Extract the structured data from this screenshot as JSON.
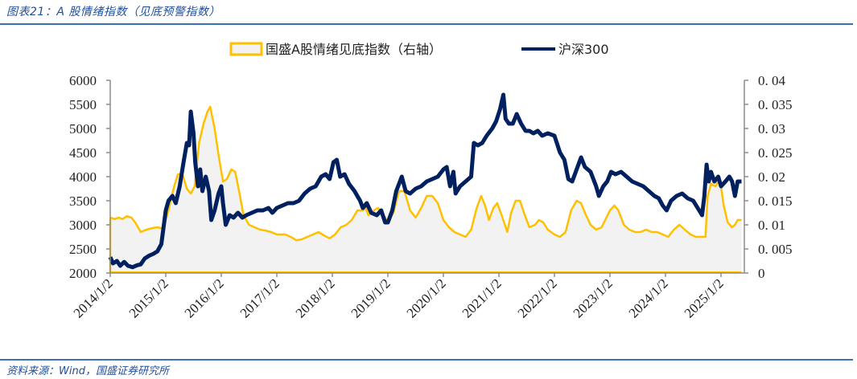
{
  "header": {
    "title": "图表21：A 股情绪指数（见底预警指数）"
  },
  "footer": {
    "source": "资料来源：Wind，国盛证券研究所"
  },
  "colors": {
    "rule": "#3b6fb6",
    "title": "#1f4e9c",
    "sentiment_line": "#ffc000",
    "sentiment_fill": "#f2f2f2",
    "hs300_line": "#002060",
    "axis": "#8c8c8c"
  },
  "legend": {
    "sentiment_label": "国盛A股情绪见底指数（右轴）",
    "hs300_label": "沪深300"
  },
  "chart_data": {
    "type": "line",
    "title": "A 股情绪指数（见底预警指数）",
    "xlabel": "",
    "ylabel_left": "",
    "ylabel_right": "",
    "x_tick_labels": [
      "2014/1/2",
      "2015/1/2",
      "2016/1/2",
      "2017/1/2",
      "2018/1/2",
      "2019/1/2",
      "2020/1/2",
      "2021/1/2",
      "2022/1/2",
      "2023/1/2",
      "2024/1/2",
      "2025/1/2"
    ],
    "y_left": {
      "min": 2000,
      "max": 6000,
      "step": 500,
      "ticks": [
        "6000",
        "5500",
        "5000",
        "4500",
        "4000",
        "3500",
        "3000",
        "2500",
        "2000"
      ]
    },
    "y_right": {
      "min": 0,
      "max": 0.04,
      "step": 0.005,
      "ticks": [
        "0. 04",
        "0. 035",
        "0. 03",
        "0. 025",
        "0. 02",
        "0. 015",
        "0. 01",
        "0. 005",
        "0"
      ]
    },
    "legend_position": "top",
    "grid": false,
    "series": [
      {
        "name": "国盛A股情绪见底指数（右轴）",
        "axis": "right",
        "style": "area",
        "points": [
          [
            2014.0,
            0.0115
          ],
          [
            2014.08,
            0.0112
          ],
          [
            2014.15,
            0.0115
          ],
          [
            2014.22,
            0.0112
          ],
          [
            2014.3,
            0.0118
          ],
          [
            2014.38,
            0.0115
          ],
          [
            2014.45,
            0.0105
          ],
          [
            2014.55,
            0.0085
          ],
          [
            2014.65,
            0.009
          ],
          [
            2014.75,
            0.0093
          ],
          [
            2014.85,
            0.0095
          ],
          [
            2014.95,
            0.0092
          ],
          [
            2015.05,
            0.013
          ],
          [
            2015.15,
            0.018
          ],
          [
            2015.22,
            0.0205
          ],
          [
            2015.3,
            0.0205
          ],
          [
            2015.38,
            0.0175
          ],
          [
            2015.45,
            0.0165
          ],
          [
            2015.52,
            0.018
          ],
          [
            2015.6,
            0.027
          ],
          [
            2015.68,
            0.031
          ],
          [
            2015.75,
            0.0335
          ],
          [
            2015.8,
            0.0345
          ],
          [
            2015.88,
            0.03
          ],
          [
            2015.95,
            0.0245
          ],
          [
            2016.03,
            0.019
          ],
          [
            2016.1,
            0.0195
          ],
          [
            2016.18,
            0.0215
          ],
          [
            2016.25,
            0.021
          ],
          [
            2016.32,
            0.017
          ],
          [
            2016.4,
            0.012
          ],
          [
            2016.5,
            0.01
          ],
          [
            2016.6,
            0.0095
          ],
          [
            2016.7,
            0.009
          ],
          [
            2016.8,
            0.0088
          ],
          [
            2016.9,
            0.0085
          ],
          [
            2017.0,
            0.008
          ],
          [
            2017.15,
            0.008
          ],
          [
            2017.25,
            0.0075
          ],
          [
            2017.35,
            0.0068
          ],
          [
            2017.45,
            0.007
          ],
          [
            2017.55,
            0.0075
          ],
          [
            2017.65,
            0.008
          ],
          [
            2017.75,
            0.0085
          ],
          [
            2017.85,
            0.0078
          ],
          [
            2017.95,
            0.0072
          ],
          [
            2018.05,
            0.008
          ],
          [
            2018.15,
            0.0095
          ],
          [
            2018.25,
            0.01
          ],
          [
            2018.35,
            0.011
          ],
          [
            2018.45,
            0.013
          ],
          [
            2018.55,
            0.013
          ],
          [
            2018.6,
            0.0135
          ],
          [
            2018.65,
            0.012
          ],
          [
            2018.75,
            0.013
          ],
          [
            2018.82,
            0.0135
          ],
          [
            2018.9,
            0.0125
          ],
          [
            2019.0,
            0.0105
          ],
          [
            2019.1,
            0.0125
          ],
          [
            2019.2,
            0.017
          ],
          [
            2019.3,
            0.017
          ],
          [
            2019.4,
            0.013
          ],
          [
            2019.5,
            0.0115
          ],
          [
            2019.6,
            0.0135
          ],
          [
            2019.7,
            0.016
          ],
          [
            2019.8,
            0.016
          ],
          [
            2019.9,
            0.0145
          ],
          [
            2020.0,
            0.011
          ],
          [
            2020.1,
            0.0095
          ],
          [
            2020.2,
            0.0085
          ],
          [
            2020.3,
            0.008
          ],
          [
            2020.4,
            0.0075
          ],
          [
            2020.5,
            0.009
          ],
          [
            2020.6,
            0.0135
          ],
          [
            2020.68,
            0.016
          ],
          [
            2020.75,
            0.014
          ],
          [
            2020.82,
            0.011
          ],
          [
            2020.9,
            0.0135
          ],
          [
            2020.97,
            0.0145
          ],
          [
            2021.05,
            0.012
          ],
          [
            2021.15,
            0.0085
          ],
          [
            2021.22,
            0.0125
          ],
          [
            2021.3,
            0.015
          ],
          [
            2021.38,
            0.015
          ],
          [
            2021.45,
            0.0125
          ],
          [
            2021.55,
            0.0095
          ],
          [
            2021.65,
            0.01
          ],
          [
            2021.72,
            0.011
          ],
          [
            2021.8,
            0.0105
          ],
          [
            2021.88,
            0.009
          ],
          [
            2022.0,
            0.008
          ],
          [
            2022.1,
            0.0075
          ],
          [
            2022.2,
            0.0085
          ],
          [
            2022.3,
            0.013
          ],
          [
            2022.4,
            0.015
          ],
          [
            2022.48,
            0.0145
          ],
          [
            2022.55,
            0.0125
          ],
          [
            2022.65,
            0.01
          ],
          [
            2022.75,
            0.009
          ],
          [
            2022.85,
            0.0095
          ],
          [
            2023.0,
            0.013
          ],
          [
            2023.08,
            0.014
          ],
          [
            2023.15,
            0.013
          ],
          [
            2023.25,
            0.01
          ],
          [
            2023.35,
            0.009
          ],
          [
            2023.45,
            0.0085
          ],
          [
            2023.55,
            0.0085
          ],
          [
            2023.65,
            0.009
          ],
          [
            2023.75,
            0.0085
          ],
          [
            2023.85,
            0.0085
          ],
          [
            2023.95,
            0.008
          ],
          [
            2024.05,
            0.0075
          ],
          [
            2024.15,
            0.009
          ],
          [
            2024.25,
            0.01
          ],
          [
            2024.35,
            0.009
          ],
          [
            2024.45,
            0.008
          ],
          [
            2024.55,
            0.0075
          ],
          [
            2024.65,
            0.0075
          ],
          [
            2024.72,
            0.0075
          ],
          [
            2024.76,
            0.016
          ],
          [
            2024.82,
            0.0185
          ],
          [
            2024.9,
            0.018
          ],
          [
            2024.98,
            0.0195
          ],
          [
            2025.05,
            0.014
          ],
          [
            2025.12,
            0.0105
          ],
          [
            2025.2,
            0.0095
          ],
          [
            2025.25,
            0.01
          ],
          [
            2025.3,
            0.011
          ],
          [
            2025.37,
            0.011
          ]
        ]
      },
      {
        "name": "沪深300",
        "axis": "left",
        "style": "line",
        "points": [
          [
            2014.0,
            2330
          ],
          [
            2014.05,
            2200
          ],
          [
            2014.12,
            2250
          ],
          [
            2014.18,
            2150
          ],
          [
            2014.25,
            2230
          ],
          [
            2014.32,
            2150
          ],
          [
            2014.4,
            2120
          ],
          [
            2014.48,
            2160
          ],
          [
            2014.55,
            2180
          ],
          [
            2014.62,
            2300
          ],
          [
            2014.7,
            2360
          ],
          [
            2014.78,
            2400
          ],
          [
            2014.85,
            2450
          ],
          [
            2014.92,
            2600
          ],
          [
            2015.0,
            3300
          ],
          [
            2015.05,
            3500
          ],
          [
            2015.12,
            3600
          ],
          [
            2015.18,
            3450
          ],
          [
            2015.25,
            3800
          ],
          [
            2015.32,
            4300
          ],
          [
            2015.38,
            4700
          ],
          [
            2015.42,
            4650
          ],
          [
            2015.45,
            5350
          ],
          [
            2015.5,
            4900
          ],
          [
            2015.53,
            4300
          ],
          [
            2015.58,
            3800
          ],
          [
            2015.62,
            4150
          ],
          [
            2015.66,
            3700
          ],
          [
            2015.72,
            4000
          ],
          [
            2015.78,
            3700
          ],
          [
            2015.82,
            3100
          ],
          [
            2015.88,
            3300
          ],
          [
            2015.95,
            3650
          ],
          [
            2016.0,
            3800
          ],
          [
            2016.03,
            3450
          ],
          [
            2016.08,
            3000
          ],
          [
            2016.15,
            3200
          ],
          [
            2016.22,
            3150
          ],
          [
            2016.3,
            3250
          ],
          [
            2016.38,
            3150
          ],
          [
            2016.45,
            3200
          ],
          [
            2016.55,
            3250
          ],
          [
            2016.65,
            3300
          ],
          [
            2016.75,
            3300
          ],
          [
            2016.85,
            3350
          ],
          [
            2016.92,
            3250
          ],
          [
            2017.0,
            3350
          ],
          [
            2017.1,
            3400
          ],
          [
            2017.2,
            3450
          ],
          [
            2017.3,
            3450
          ],
          [
            2017.4,
            3500
          ],
          [
            2017.5,
            3650
          ],
          [
            2017.6,
            3750
          ],
          [
            2017.7,
            3800
          ],
          [
            2017.8,
            4000
          ],
          [
            2017.88,
            4050
          ],
          [
            2017.95,
            3950
          ],
          [
            2018.02,
            4300
          ],
          [
            2018.08,
            4350
          ],
          [
            2018.14,
            4000
          ],
          [
            2018.22,
            4050
          ],
          [
            2018.3,
            3850
          ],
          [
            2018.4,
            3700
          ],
          [
            2018.5,
            3500
          ],
          [
            2018.55,
            3350
          ],
          [
            2018.62,
            3450
          ],
          [
            2018.7,
            3250
          ],
          [
            2018.8,
            3200
          ],
          [
            2018.88,
            3300
          ],
          [
            2018.95,
            3050
          ],
          [
            2019.0,
            3050
          ],
          [
            2019.08,
            3300
          ],
          [
            2019.15,
            3700
          ],
          [
            2019.25,
            4000
          ],
          [
            2019.32,
            3700
          ],
          [
            2019.4,
            3650
          ],
          [
            2019.5,
            3750
          ],
          [
            2019.6,
            3800
          ],
          [
            2019.7,
            3900
          ],
          [
            2019.8,
            3950
          ],
          [
            2019.9,
            4000
          ],
          [
            2020.0,
            4150
          ],
          [
            2020.06,
            4200
          ],
          [
            2020.12,
            3800
          ],
          [
            2020.18,
            4100
          ],
          [
            2020.22,
            3650
          ],
          [
            2020.3,
            3800
          ],
          [
            2020.4,
            3900
          ],
          [
            2020.5,
            4000
          ],
          [
            2020.55,
            4700
          ],
          [
            2020.62,
            4650
          ],
          [
            2020.7,
            4700
          ],
          [
            2020.78,
            4850
          ],
          [
            2020.88,
            5000
          ],
          [
            2020.95,
            5150
          ],
          [
            2021.02,
            5400
          ],
          [
            2021.08,
            5700
          ],
          [
            2021.12,
            5200
          ],
          [
            2021.18,
            5100
          ],
          [
            2021.25,
            5100
          ],
          [
            2021.32,
            5300
          ],
          [
            2021.4,
            5100
          ],
          [
            2021.48,
            4950
          ],
          [
            2021.55,
            4950
          ],
          [
            2021.62,
            4900
          ],
          [
            2021.7,
            4950
          ],
          [
            2021.78,
            4850
          ],
          [
            2021.88,
            4900
          ],
          [
            2022.0,
            4850
          ],
          [
            2022.1,
            4500
          ],
          [
            2022.18,
            4350
          ],
          [
            2022.25,
            3950
          ],
          [
            2022.32,
            3900
          ],
          [
            2022.4,
            4150
          ],
          [
            2022.48,
            4400
          ],
          [
            2022.55,
            4200
          ],
          [
            2022.65,
            4100
          ],
          [
            2022.75,
            3800
          ],
          [
            2022.8,
            3600
          ],
          [
            2022.88,
            3800
          ],
          [
            2022.95,
            3900
          ],
          [
            2023.02,
            4100
          ],
          [
            2023.1,
            4050
          ],
          [
            2023.2,
            4100
          ],
          [
            2023.3,
            4000
          ],
          [
            2023.4,
            3900
          ],
          [
            2023.5,
            3850
          ],
          [
            2023.6,
            3800
          ],
          [
            2023.7,
            3700
          ],
          [
            2023.8,
            3600
          ],
          [
            2023.88,
            3550
          ],
          [
            2023.95,
            3400
          ],
          [
            2024.02,
            3300
          ],
          [
            2024.1,
            3500
          ],
          [
            2024.2,
            3600
          ],
          [
            2024.3,
            3650
          ],
          [
            2024.4,
            3550
          ],
          [
            2024.5,
            3500
          ],
          [
            2024.58,
            3350
          ],
          [
            2024.66,
            3200
          ],
          [
            2024.7,
            3600
          ],
          [
            2024.74,
            4250
          ],
          [
            2024.78,
            3900
          ],
          [
            2024.82,
            4100
          ],
          [
            2024.88,
            3900
          ],
          [
            2024.95,
            4000
          ],
          [
            2025.0,
            3800
          ],
          [
            2025.08,
            3900
          ],
          [
            2025.15,
            4000
          ],
          [
            2025.2,
            3900
          ],
          [
            2025.25,
            3600
          ],
          [
            2025.3,
            3900
          ],
          [
            2025.37,
            3900
          ]
        ]
      }
    ]
  }
}
